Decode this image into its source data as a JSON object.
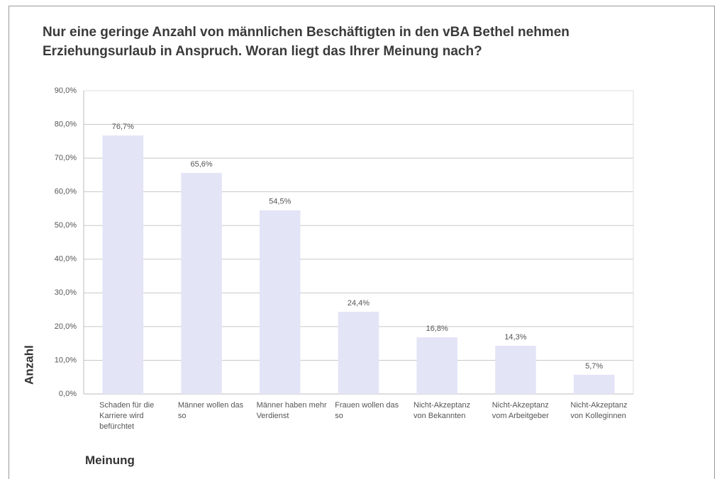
{
  "chart_data": {
    "type": "bar",
    "title": "Nur eine geringe Anzahl von männlichen Beschäftigten in den vBA Bethel nehmen Erziehungsurlaub in Anspruch. Woran liegt das Ihrer Meinung nach?",
    "x_label": "Meinung",
    "y_label": "Anzahl",
    "categories": [
      "Schaden für die Karriere wird befürchtet",
      "Männer wollen das so",
      "Männer haben mehr Verdienst",
      "Frauen wollen das so",
      "Nicht-Akzeptanz von Bekannten",
      "Nicht-Akzeptanz vom Arbeitgeber",
      "Nicht-Akzeptanz von Kolleginnen"
    ],
    "values": [
      76.7,
      65.6,
      54.5,
      24.4,
      16.8,
      14.3,
      5.7
    ],
    "value_labels": [
      "76,7%",
      "65,6%",
      "54,5%",
      "24,4%",
      "16,8%",
      "14,3%",
      "5,7%"
    ],
    "color": "#e4e4f7",
    "ylim": [
      0,
      90
    ],
    "yticks": [
      {
        "value": 0,
        "label": "0,0%"
      },
      {
        "value": 10,
        "label": "10,0%"
      },
      {
        "value": 20,
        "label": "20,0%"
      },
      {
        "value": 30,
        "label": "30,0%"
      },
      {
        "value": 40,
        "label": "40,0%"
      },
      {
        "value": 50,
        "label": "50,0%"
      },
      {
        "value": 60,
        "label": "60,0%"
      },
      {
        "value": 70,
        "label": "70,0%"
      },
      {
        "value": 80,
        "label": "80,0%"
      },
      {
        "value": 90,
        "label": "90,0%"
      }
    ],
    "grid": true
  }
}
